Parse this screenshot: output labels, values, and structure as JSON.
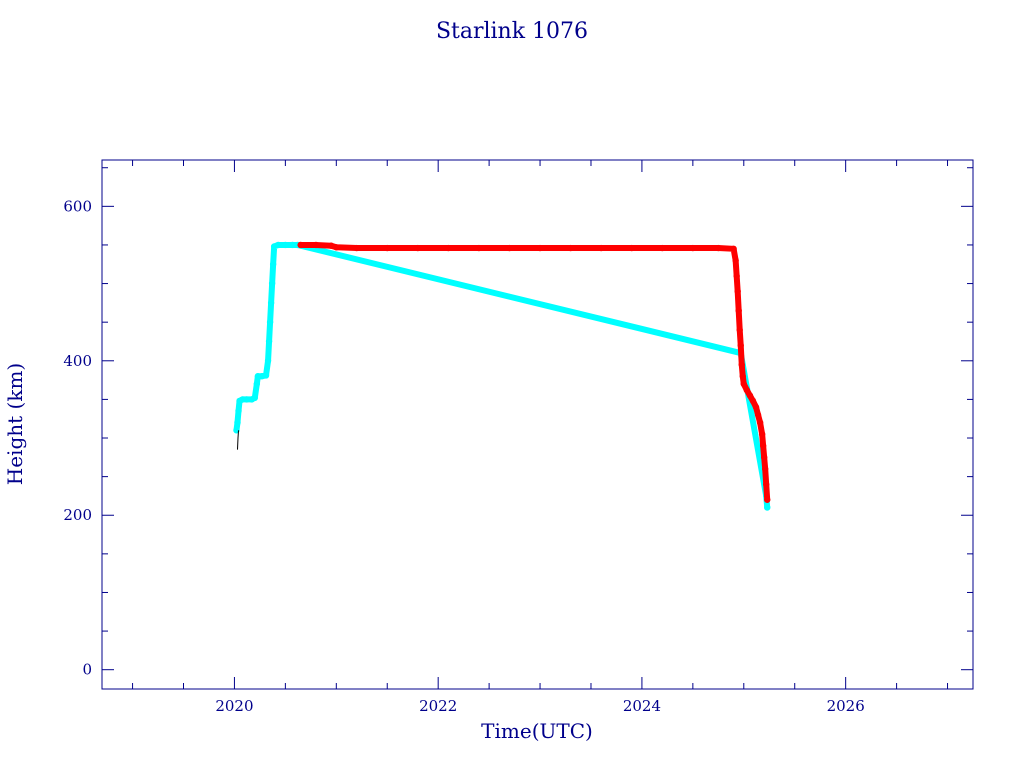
{
  "chart_data": {
    "type": "scatter",
    "title": "Starlink 1076",
    "xlabel": "Time(UTC)",
    "ylabel": "Height (km)",
    "xlim": [
      2018.7,
      2027.25
    ],
    "ylim": [
      -25,
      660
    ],
    "x_major_ticks": [
      2020,
      2022,
      2024,
      2026
    ],
    "x_minor_ticks": [
      2019,
      2019.5,
      2020.5,
      2021,
      2021.5,
      2022.5,
      2023,
      2023.5,
      2024.5,
      2025,
      2025.5,
      2026.5,
      2027
    ],
    "y_major_ticks": [
      0,
      200,
      400,
      600
    ],
    "y_minor_ticks": [
      50,
      100,
      150,
      250,
      300,
      350,
      450,
      500,
      550,
      650
    ],
    "grid": false,
    "legend": "none",
    "colors": {
      "axis": "#00008b",
      "cyan": "#00ffff",
      "red": "#ff0000",
      "black": "#000000"
    },
    "series": [
      {
        "color": "cyan",
        "points": [
          [
            2020.02,
            310
          ],
          [
            2020.03,
            320
          ],
          [
            2020.04,
            335
          ],
          [
            2020.05,
            348
          ],
          [
            2020.08,
            350
          ],
          [
            2020.12,
            350
          ],
          [
            2020.17,
            350
          ],
          [
            2020.2,
            352
          ],
          [
            2020.22,
            370
          ],
          [
            2020.23,
            380
          ],
          [
            2020.27,
            380
          ],
          [
            2020.31,
            381
          ],
          [
            2020.33,
            400
          ],
          [
            2020.34,
            425
          ],
          [
            2020.35,
            450
          ],
          [
            2020.36,
            475
          ],
          [
            2020.37,
            500
          ],
          [
            2020.38,
            525
          ],
          [
            2020.39,
            548
          ],
          [
            2020.43,
            550
          ],
          [
            2020.5,
            550
          ],
          [
            2020.57,
            550
          ],
          [
            2020.62,
            550
          ],
          [
            2024.97,
            410
          ],
          [
            2025.22,
            225
          ],
          [
            2025.23,
            210
          ]
        ]
      },
      {
        "color": "red",
        "points": [
          [
            2020.65,
            550
          ],
          [
            2020.8,
            550
          ],
          [
            2020.95,
            549
          ],
          [
            2021.0,
            547
          ],
          [
            2021.2,
            546
          ],
          [
            2021.5,
            546
          ],
          [
            2021.8,
            546
          ],
          [
            2022.1,
            546
          ],
          [
            2022.4,
            546
          ],
          [
            2022.7,
            546
          ],
          [
            2023.0,
            546
          ],
          [
            2023.3,
            546
          ],
          [
            2023.6,
            546
          ],
          [
            2023.9,
            546
          ],
          [
            2024.2,
            546
          ],
          [
            2024.5,
            546
          ],
          [
            2024.75,
            546
          ],
          [
            2024.9,
            545
          ],
          [
            2024.92,
            530
          ],
          [
            2024.93,
            510
          ],
          [
            2024.94,
            490
          ],
          [
            2024.95,
            465
          ],
          [
            2024.96,
            440
          ],
          [
            2024.97,
            420
          ],
          [
            2024.98,
            395
          ],
          [
            2024.99,
            380
          ],
          [
            2025.0,
            370
          ],
          [
            2025.03,
            362
          ],
          [
            2025.06,
            355
          ],
          [
            2025.09,
            348
          ],
          [
            2025.12,
            340
          ],
          [
            2025.14,
            330
          ],
          [
            2025.16,
            320
          ],
          [
            2025.18,
            305
          ],
          [
            2025.19,
            290
          ],
          [
            2025.2,
            275
          ],
          [
            2025.21,
            260
          ],
          [
            2025.22,
            240
          ],
          [
            2025.23,
            220
          ]
        ]
      },
      {
        "color": "black",
        "points": [
          [
            2020.03,
            285
          ],
          [
            2020.035,
            300
          ],
          [
            2020.04,
            310
          ]
        ]
      }
    ]
  }
}
